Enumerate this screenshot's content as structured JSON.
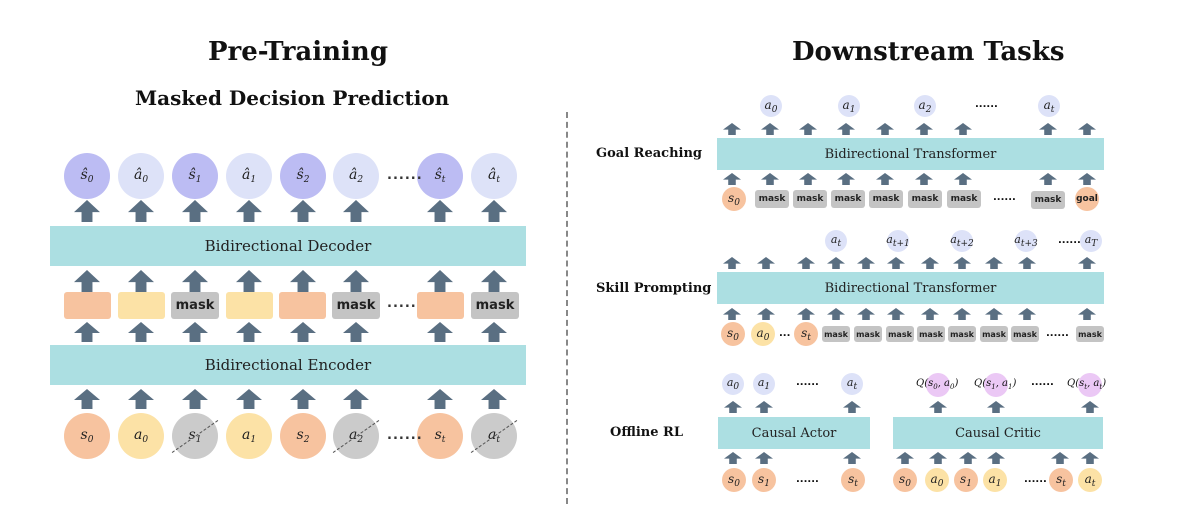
{
  "left": {
    "title": "Pre-Training",
    "subtitle": "Masked Decision Prediction",
    "decoder_label": "Bidirectional Decoder",
    "encoder_label": "Bidirectional Encoder",
    "mask_label": "mask",
    "ellipsis": "......"
  },
  "right": {
    "title": "Downstream Tasks",
    "goal": {
      "label": "Goal Reaching",
      "transformer_label": "Bidirectional Transformer",
      "goal_token": "goal"
    },
    "skill": {
      "label": "Skill Prompting",
      "transformer_label": "Bidirectional Transformer"
    },
    "offline": {
      "label": "Offline RL",
      "actor_label": "Causal Actor",
      "critic_label": "Causal Critic"
    }
  },
  "colors": {
    "band": "#acdfe2",
    "state": "#f7c39f",
    "action": "#fce2a6",
    "masked": "#cbcbcb",
    "pred_state": "#bcbcf3",
    "pred_action": "#dde2f8",
    "q_value": "#ebc8f5",
    "arrow": "#5a6f82"
  }
}
